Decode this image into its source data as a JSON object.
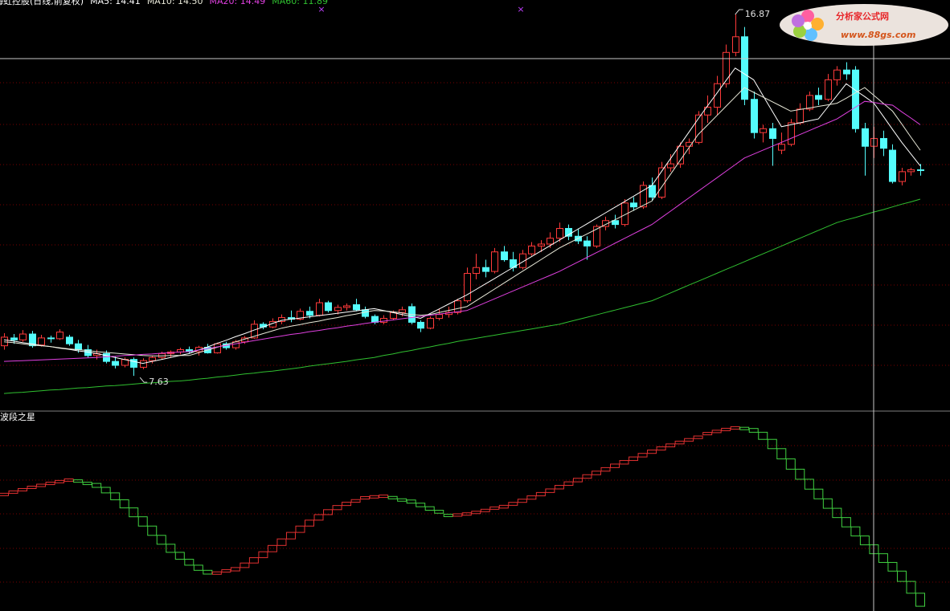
{
  "chart_data": {
    "type": "candlestick",
    "title": "海虹控股(日线,前复权)",
    "up_color": "#ff3a3a",
    "down_color": "#54fcfc",
    "ylim": [
      6.73,
      17.24
    ],
    "open": [
      8.4,
      8.6,
      8.55,
      8.7,
      8.42,
      8.6,
      8.58,
      8.62,
      8.45,
      8.3,
      8.15,
      8.2,
      8.0,
      7.9,
      8.05,
      7.85,
      8.02,
      8.1,
      8.2,
      8.24,
      8.3,
      8.25,
      8.36,
      8.22,
      8.45,
      8.35,
      8.5,
      8.6,
      8.95,
      8.88,
      9.02,
      9.12,
      9.08,
      9.28,
      9.18,
      9.5,
      9.3,
      9.38,
      9.45,
      9.32,
      9.15,
      9.0,
      9.1,
      9.25,
      9.4,
      9.0,
      8.85,
      9.1,
      9.2,
      9.25,
      9.55,
      10.25,
      10.4,
      10.3,
      10.8,
      10.6,
      10.4,
      10.75,
      10.95,
      11.0,
      11.15,
      11.4,
      11.2,
      11.08,
      10.95,
      11.45,
      11.6,
      11.5,
      12.05,
      11.95,
      12.5,
      12.2,
      12.95,
      13.05,
      13.5,
      13.6,
      14.3,
      14.5,
      15.1,
      15.9,
      16.3,
      14.7,
      13.85,
      13.95,
      13.4,
      13.55,
      14.1,
      14.45,
      14.8,
      14.7,
      15.2,
      15.45,
      15.45,
      13.95,
      13.5,
      13.7,
      13.4,
      12.6,
      12.85,
      12.9
    ],
    "high": [
      8.72,
      8.7,
      8.8,
      8.78,
      8.68,
      8.66,
      8.82,
      8.68,
      8.55,
      8.42,
      8.3,
      8.28,
      8.12,
      8.1,
      8.1,
      8.08,
      8.15,
      8.25,
      8.28,
      8.35,
      8.38,
      8.4,
      8.45,
      8.48,
      8.5,
      8.55,
      8.65,
      9.05,
      9.0,
      9.1,
      9.2,
      9.3,
      9.35,
      9.4,
      9.6,
      9.55,
      9.45,
      9.48,
      9.6,
      9.4,
      9.2,
      9.18,
      9.3,
      9.4,
      9.48,
      9.05,
      9.15,
      9.35,
      9.4,
      9.6,
      10.4,
      10.75,
      10.6,
      10.9,
      10.95,
      10.8,
      10.85,
      11.05,
      11.1,
      11.3,
      11.55,
      11.5,
      11.4,
      11.2,
      11.5,
      11.7,
      11.75,
      12.15,
      12.2,
      12.6,
      12.7,
      13.1,
      13.3,
      13.6,
      13.7,
      14.4,
      14.8,
      15.3,
      16.1,
      16.87,
      16.55,
      14.9,
      14.05,
      14.1,
      13.85,
      14.2,
      14.6,
      14.9,
      15.0,
      15.35,
      15.55,
      15.65,
      15.55,
      14.1,
      14.0,
      13.9,
      13.55,
      12.95,
      12.95,
      13.05
    ],
    "low": [
      8.3,
      8.45,
      8.5,
      8.35,
      8.38,
      8.48,
      8.55,
      8.4,
      8.22,
      8.1,
      8.05,
      7.95,
      7.82,
      7.85,
      7.63,
      7.8,
      7.95,
      8.05,
      8.1,
      8.18,
      8.2,
      8.15,
      8.2,
      8.2,
      8.3,
      8.3,
      8.45,
      8.58,
      8.82,
      8.85,
      8.95,
      9.0,
      9.05,
      9.1,
      9.15,
      9.25,
      9.2,
      9.3,
      9.28,
      9.1,
      8.95,
      8.95,
      9.05,
      9.15,
      8.95,
      8.75,
      8.82,
      9.05,
      9.12,
      9.2,
      9.5,
      10.1,
      10.15,
      10.25,
      10.55,
      10.3,
      10.35,
      10.7,
      10.8,
      10.9,
      11.05,
      11.1,
      11.0,
      10.6,
      10.9,
      11.35,
      11.4,
      11.45,
      11.85,
      11.9,
      12.1,
      12.15,
      12.85,
      12.95,
      13.3,
      13.55,
      14.1,
      14.3,
      15.0,
      15.8,
      14.55,
      13.7,
      13.6,
      13.0,
      13.3,
      13.5,
      14.05,
      14.4,
      14.55,
      14.65,
      15.05,
      15.2,
      13.85,
      12.75,
      13.2,
      13.25,
      12.55,
      12.5,
      12.75,
      12.75
    ],
    "close": [
      8.62,
      8.55,
      8.7,
      8.4,
      8.6,
      8.58,
      8.75,
      8.45,
      8.3,
      8.15,
      8.2,
      8.0,
      7.9,
      8.05,
      7.85,
      8.02,
      8.1,
      8.2,
      8.24,
      8.3,
      8.25,
      8.36,
      8.22,
      8.45,
      8.35,
      8.5,
      8.6,
      8.95,
      8.88,
      9.02,
      9.12,
      9.08,
      9.28,
      9.18,
      9.5,
      9.3,
      9.38,
      9.42,
      9.32,
      9.15,
      9.0,
      9.1,
      9.25,
      9.32,
      9.0,
      8.85,
      9.1,
      9.2,
      9.25,
      9.55,
      10.25,
      10.4,
      10.3,
      10.8,
      10.6,
      10.4,
      10.75,
      10.95,
      11.0,
      11.15,
      11.4,
      11.2,
      11.08,
      10.95,
      11.45,
      11.6,
      11.5,
      12.05,
      11.95,
      12.5,
      12.2,
      12.95,
      13.05,
      13.5,
      13.6,
      14.3,
      14.5,
      15.1,
      15.9,
      16.3,
      14.7,
      13.85,
      13.95,
      13.7,
      13.55,
      14.1,
      14.45,
      14.8,
      14.7,
      15.2,
      15.45,
      15.35,
      13.95,
      13.5,
      13.7,
      13.45,
      12.6,
      12.85,
      12.9,
      12.88
    ],
    "series": [
      {
        "name": "MA5: 14.41",
        "color": "#ffffff",
        "values": [
          8.55,
          8.52,
          8.48,
          8.45,
          8.41,
          8.38,
          8.34,
          8.31,
          8.27,
          8.24,
          8.2,
          8.15,
          8.1,
          8.05,
          8.0,
          7.95,
          8.0,
          8.05,
          8.1,
          8.15,
          8.2,
          8.29,
          8.37,
          8.46,
          8.54,
          8.63,
          8.71,
          8.8,
          8.88,
          8.97,
          9.05,
          9.08,
          9.11,
          9.14,
          9.17,
          9.2,
          9.23,
          9.26,
          9.29,
          9.32,
          9.35,
          9.3,
          9.25,
          9.2,
          9.15,
          9.1,
          9.22,
          9.34,
          9.46,
          9.58,
          9.7,
          9.84,
          9.98,
          10.12,
          10.26,
          10.4,
          10.54,
          10.68,
          10.82,
          10.96,
          11.1,
          11.24,
          11.38,
          11.52,
          11.66,
          11.8,
          11.94,
          12.08,
          12.22,
          12.36,
          12.5,
          12.84,
          13.18,
          13.52,
          13.86,
          14.2,
          14.53,
          14.85,
          15.18,
          15.5,
          15.35,
          15.2,
          14.8,
          14.4,
          14.0,
          14.05,
          14.1,
          14.15,
          14.2,
          14.5,
          14.8,
          15.1,
          14.93,
          14.77,
          14.6,
          14.27,
          13.93,
          13.6,
          13.3,
          13.0
        ]
      },
      {
        "name": "MA10: 14.50",
        "color": "#e8e8d8",
        "values": [
          8.5,
          8.48,
          8.45,
          8.42,
          8.4,
          8.38,
          8.35,
          8.32,
          8.3,
          8.28,
          8.25,
          8.23,
          8.21,
          8.19,
          8.17,
          8.15,
          8.14,
          8.14,
          8.15,
          8.15,
          8.15,
          8.22,
          8.29,
          8.36,
          8.43,
          8.5,
          8.57,
          8.64,
          8.71,
          8.78,
          8.85,
          8.9,
          8.94,
          8.99,
          9.03,
          9.08,
          9.12,
          9.17,
          9.21,
          9.26,
          9.3,
          9.29,
          9.27,
          9.24,
          9.2,
          9.18,
          9.2,
          9.25,
          9.3,
          9.35,
          9.4,
          9.55,
          9.7,
          9.85,
          10.0,
          10.15,
          10.3,
          10.45,
          10.6,
          10.75,
          10.9,
          11.02,
          11.14,
          11.26,
          11.38,
          11.5,
          11.62,
          11.74,
          11.86,
          11.98,
          12.1,
          12.44,
          12.78,
          13.12,
          13.46,
          13.8,
          14.04,
          14.28,
          14.52,
          14.76,
          15.0,
          14.88,
          14.76,
          14.64,
          14.52,
          14.4,
          14.44,
          14.48,
          14.52,
          14.56,
          14.6,
          14.73,
          14.87,
          15.0,
          14.8,
          14.6,
          14.4,
          14.07,
          13.73,
          13.4
        ]
      },
      {
        "name": "MA20: 14.49",
        "color": "#e040e0",
        "values": [
          8.0,
          8.01,
          8.02,
          8.03,
          8.04,
          8.05,
          8.06,
          8.07,
          8.08,
          8.09,
          8.1,
          8.12,
          8.13,
          8.15,
          8.16,
          8.18,
          8.19,
          8.21,
          8.22,
          8.24,
          8.25,
          8.29,
          8.33,
          8.37,
          8.41,
          8.45,
          8.49,
          8.53,
          8.57,
          8.61,
          8.65,
          8.69,
          8.72,
          8.76,
          8.79,
          8.83,
          8.86,
          8.9,
          8.93,
          8.97,
          9.0,
          9.03,
          9.06,
          9.09,
          9.12,
          9.15,
          9.18,
          9.21,
          9.24,
          9.27,
          9.3,
          9.4,
          9.5,
          9.6,
          9.7,
          9.8,
          9.9,
          10.0,
          10.1,
          10.2,
          10.3,
          10.42,
          10.54,
          10.66,
          10.78,
          10.9,
          11.02,
          11.14,
          11.26,
          11.38,
          11.5,
          11.67,
          11.84,
          12.01,
          12.18,
          12.35,
          12.52,
          12.69,
          12.86,
          13.03,
          13.2,
          13.3,
          13.4,
          13.5,
          13.6,
          13.7,
          13.8,
          13.9,
          14.0,
          14.1,
          14.2,
          14.35,
          14.5,
          14.65,
          14.62,
          14.58,
          14.55,
          14.38,
          14.22,
          14.05
        ]
      },
      {
        "name": "MA60: 11.89",
        "color": "#30c030",
        "values": [
          7.18,
          7.2,
          7.21,
          7.23,
          7.25,
          7.27,
          7.28,
          7.3,
          7.32,
          7.33,
          7.35,
          7.37,
          7.38,
          7.4,
          7.42,
          7.44,
          7.45,
          7.47,
          7.49,
          7.5,
          7.52,
          7.55,
          7.57,
          7.6,
          7.62,
          7.65,
          7.68,
          7.7,
          7.73,
          7.75,
          7.78,
          7.81,
          7.84,
          7.88,
          7.91,
          7.94,
          7.97,
          8.0,
          8.04,
          8.07,
          8.1,
          8.15,
          8.19,
          8.24,
          8.28,
          8.33,
          8.37,
          8.42,
          8.46,
          8.51,
          8.55,
          8.59,
          8.63,
          8.67,
          8.71,
          8.75,
          8.79,
          8.83,
          8.87,
          8.91,
          8.95,
          9.01,
          9.07,
          9.13,
          9.19,
          9.25,
          9.31,
          9.37,
          9.43,
          9.49,
          9.55,
          9.65,
          9.75,
          9.85,
          9.95,
          10.05,
          10.15,
          10.25,
          10.35,
          10.45,
          10.55,
          10.65,
          10.75,
          10.85,
          10.95,
          11.05,
          11.15,
          11.25,
          11.35,
          11.45,
          11.55,
          11.62,
          11.68,
          11.75,
          11.82,
          11.88,
          11.95,
          12.02,
          12.08,
          12.15
        ]
      }
    ],
    "indicator": {
      "title": "波段之星",
      "ylim": [
        0,
        100
      ],
      "up_color": "#e03030",
      "down_color": "#40d040",
      "values": [
        59.0,
        60.2,
        61.4,
        62.6,
        63.6,
        64.6,
        65.5,
        66.3,
        65.8,
        64.6,
        62.6,
        59.8,
        56.3,
        52.2,
        47.7,
        43.0,
        38.3,
        33.8,
        29.7,
        26.2,
        23.2,
        20.6,
        18.7,
        19.2,
        20.3,
        22.0,
        24.3,
        27.0,
        30.0,
        33.2,
        36.5,
        39.8,
        43.0,
        46.0,
        48.8,
        51.3,
        53.4,
        55.1,
        56.4,
        57.3,
        57.8,
        58.1,
        57.4,
        56.2,
        54.6,
        52.8,
        51.0,
        49.5,
        48.4,
        48.6,
        49.1,
        49.9,
        50.9,
        52.1,
        53.5,
        55.0,
        56.6,
        58.3,
        60.0,
        61.8,
        63.6,
        65.4,
        67.2,
        69.0,
        70.8,
        72.6,
        74.4,
        76.2,
        78.0,
        79.8,
        81.5,
        83.1,
        84.6,
        86.0,
        87.3,
        88.6,
        89.8,
        90.9,
        91.9,
        92.7,
        92.4,
        90.5,
        86.9,
        82.2,
        77.0,
        71.8,
        66.7,
        61.7,
        56.8,
        52.0,
        47.3,
        42.6,
        38.0,
        33.5,
        29.0,
        24.6,
        20.2,
        15.0,
        9.0,
        2.4
      ]
    }
  },
  "watermark": {
    "title": "分析家公式网",
    "url": "www.88gs.com"
  }
}
